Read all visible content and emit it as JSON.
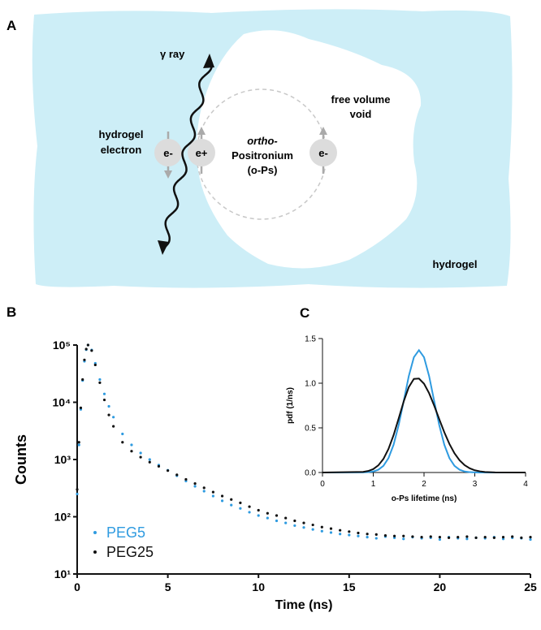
{
  "diagram": {
    "panel_label": "A",
    "gamma": "γ ray",
    "hydrogel_electron": [
      "hydrogel",
      "electron"
    ],
    "positronium": [
      "ortho-",
      "Positronium",
      "(o-Ps)"
    ],
    "void": [
      "free volume",
      "void"
    ],
    "hydrogel": "hydrogel",
    "particles": [
      "e-",
      "e+",
      "e-"
    ]
  },
  "chart_data": [
    {
      "type": "scatter",
      "panel_label": "B",
      "xlabel": "Time (ns)",
      "ylabel": "Counts",
      "ylog": true,
      "xlim": [
        0,
        25
      ],
      "xticks": [
        0,
        5,
        10,
        15,
        20,
        25
      ],
      "ylim": [
        10,
        100000
      ],
      "yticks": [
        {
          "value": 10,
          "label": "10¹"
        },
        {
          "value": 100,
          "label": "10²"
        },
        {
          "value": 1000,
          "label": "10³"
        },
        {
          "value": 10000,
          "label": "10⁴"
        },
        {
          "value": 100000,
          "label": "10⁵"
        }
      ],
      "legend": "lower left",
      "x": [
        0,
        0.1,
        0.2,
        0.3,
        0.4,
        0.5,
        0.6,
        0.8,
        1,
        1.25,
        1.5,
        1.75,
        2,
        2.5,
        3,
        3.5,
        4,
        4.5,
        5,
        5.5,
        6,
        6.5,
        7,
        7.5,
        8,
        8.5,
        9,
        9.5,
        10,
        10.5,
        11,
        11.5,
        12,
        12.5,
        13,
        13.5,
        14,
        14.5,
        15,
        15.5,
        16,
        16.5,
        17,
        17.5,
        18,
        18.5,
        19,
        19.5,
        20,
        20.5,
        21,
        21.5,
        22,
        22.5,
        23,
        23.5,
        24,
        24.5,
        25
      ],
      "series": [
        {
          "name": "PEG5",
          "color": "#2f9be0",
          "values": [
            250,
            1800,
            7500,
            24000,
            52000,
            83000,
            100000,
            82000,
            48000,
            25000,
            14000,
            8500,
            5500,
            2800,
            1800,
            1300,
            1000,
            800,
            650,
            520,
            420,
            340,
            280,
            230,
            190,
            160,
            140,
            120,
            105,
            95,
            85,
            78,
            70,
            65,
            60,
            56,
            53,
            50,
            48,
            46,
            44,
            42,
            45,
            43,
            41,
            44,
            42,
            43,
            40,
            44,
            42,
            41,
            43,
            42,
            44,
            41,
            43,
            42,
            40
          ]
        },
        {
          "name": "PEG25",
          "color": "#111111",
          "values": [
            300,
            2000,
            8000,
            25000,
            55000,
            85000,
            100000,
            80000,
            45000,
            22000,
            11000,
            6000,
            3800,
            2000,
            1400,
            1100,
            900,
            760,
            640,
            540,
            450,
            380,
            320,
            270,
            230,
            200,
            175,
            150,
            130,
            115,
            105,
            95,
            85,
            78,
            72,
            66,
            62,
            58,
            55,
            52,
            50,
            49,
            47,
            46,
            46,
            45,
            44,
            45,
            44,
            43,
            44,
            45,
            43,
            44,
            43,
            44,
            45,
            43,
            44
          ]
        }
      ]
    },
    {
      "type": "line",
      "panel_label": "C",
      "xlabel": "o-Ps lifetime (ns)",
      "ylabel": "pdf (1/ns)",
      "xlim": [
        0,
        4
      ],
      "xticks": [
        0,
        1,
        2,
        3,
        4
      ],
      "ylim": [
        0,
        1.5
      ],
      "yticks": [
        {
          "value": 0,
          "label": "0.0"
        },
        {
          "value": 0.5,
          "label": "0.5"
        },
        {
          "value": 1,
          "label": "1.0"
        },
        {
          "value": 1.5,
          "label": "1.5"
        }
      ],
      "x": [
        0,
        0.8,
        0.9,
        1,
        1.1,
        1.2,
        1.3,
        1.4,
        1.5,
        1.6,
        1.7,
        1.8,
        1.9,
        2,
        2.1,
        2.2,
        2.3,
        2.4,
        2.5,
        2.6,
        2.7,
        2.8,
        2.9,
        3,
        3.1,
        3.2,
        3.3,
        3.4,
        4
      ],
      "series": [
        {
          "name": "PEG5",
          "color": "#2f9be0",
          "values": [
            0,
            0.001,
            0.004,
            0.011,
            0.031,
            0.075,
            0.161,
            0.31,
            0.53,
            0.8,
            1.08,
            1.29,
            1.37,
            1.29,
            1.08,
            0.8,
            0.53,
            0.31,
            0.161,
            0.075,
            0.031,
            0.011,
            0.004,
            0.001,
            0,
            0,
            0,
            0,
            0
          ]
        },
        {
          "name": "PEG25",
          "color": "#111111",
          "values": [
            0,
            0.007,
            0.017,
            0.038,
            0.08,
            0.152,
            0.264,
            0.418,
            0.604,
            0.796,
            0.956,
            1.048,
            1.052,
            0.994,
            0.888,
            0.749,
            0.597,
            0.45,
            0.32,
            0.215,
            0.137,
            0.082,
            0.047,
            0.025,
            0.013,
            0.006,
            0.003,
            0.001,
            0
          ]
        }
      ]
    }
  ]
}
